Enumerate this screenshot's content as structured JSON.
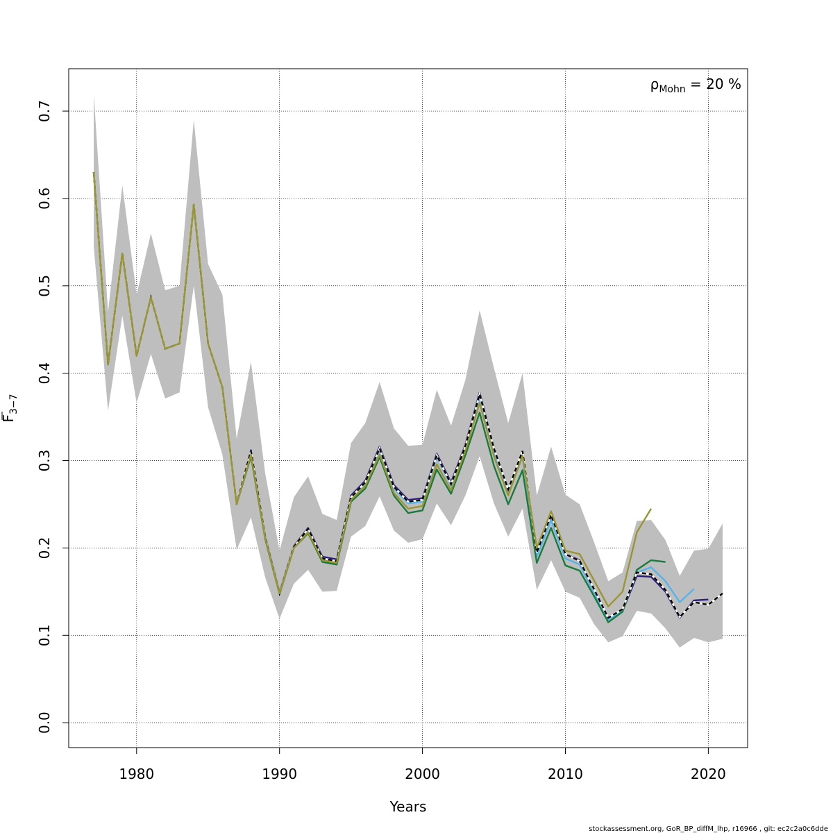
{
  "chart_data": {
    "type": "line",
    "xlabel": "Years",
    "ylabel": {
      "base": "F",
      "sub": "3−7"
    },
    "xlim": [
      1975.25,
      2022.75
    ],
    "ylim": [
      -0.0285,
      0.7485
    ],
    "xticks": [
      1980,
      1990,
      2000,
      2010,
      2020
    ],
    "yticks": [
      0.0,
      0.1,
      0.2,
      0.3,
      0.4,
      0.5,
      0.6,
      0.7
    ],
    "ytick_labels": [
      "0.0",
      "0.1",
      "0.2",
      "0.3",
      "0.4",
      "0.5",
      "0.6",
      "0.7"
    ],
    "grid": true,
    "annotation": {
      "rho": "ρ",
      "sub": "Mohn",
      "text": " = 20 %"
    },
    "footer": "stockassessment.org, GoR_BP_diffM_lhp, r16966 , git: ec2c2a0c6dde",
    "confidence_band": {
      "x": [
        1977,
        1978,
        1979,
        1980,
        1981,
        1982,
        1983,
        1984,
        1985,
        1986,
        1987,
        1988,
        1989,
        1990,
        1991,
        1992,
        1993,
        1994,
        1995,
        1996,
        1997,
        1998,
        1999,
        2000,
        2001,
        2002,
        2003,
        2004,
        2005,
        2006,
        2007,
        2008,
        2009,
        2010,
        2011,
        2012,
        2013,
        2014,
        2015,
        2016,
        2017,
        2018,
        2019,
        2020,
        2021
      ],
      "upper": [
        0.72,
        0.47,
        0.615,
        0.49,
        0.56,
        0.495,
        0.5,
        0.69,
        0.525,
        0.49,
        0.325,
        0.413,
        0.285,
        0.197,
        0.258,
        0.282,
        0.239,
        0.232,
        0.32,
        0.343,
        0.39,
        0.337,
        0.317,
        0.318,
        0.381,
        0.34,
        0.392,
        0.472,
        0.406,
        0.343,
        0.4,
        0.26,
        0.316,
        0.261,
        0.25,
        0.207,
        0.162,
        0.172,
        0.231,
        0.232,
        0.209,
        0.168,
        0.197,
        0.199,
        0.228
      ],
      "lower": [
        0.545,
        0.357,
        0.466,
        0.366,
        0.422,
        0.371,
        0.378,
        0.5,
        0.361,
        0.307,
        0.198,
        0.235,
        0.166,
        0.119,
        0.159,
        0.175,
        0.15,
        0.151,
        0.213,
        0.225,
        0.259,
        0.22,
        0.206,
        0.21,
        0.251,
        0.226,
        0.26,
        0.305,
        0.251,
        0.213,
        0.245,
        0.152,
        0.186,
        0.15,
        0.143,
        0.113,
        0.092,
        0.099,
        0.128,
        0.125,
        0.108,
        0.086,
        0.097,
        0.092,
        0.096
      ]
    },
    "series": [
      {
        "color": "#000000",
        "dashed": true,
        "end": 2021,
        "values": [
          0.63,
          0.41,
          0.537,
          0.42,
          0.487,
          0.428,
          0.434,
          0.593,
          0.434,
          0.384,
          0.25,
          0.311,
          0.212,
          0.148,
          0.201,
          0.222,
          0.188,
          0.185,
          0.258,
          0.275,
          0.314,
          0.27,
          0.253,
          0.255,
          0.306,
          0.273,
          0.316,
          0.376,
          0.314,
          0.267,
          0.311,
          0.195,
          0.238,
          0.193,
          0.185,
          0.153,
          0.12,
          0.13,
          0.172,
          0.17,
          0.152,
          0.121,
          0.138,
          0.135,
          0.148
        ]
      },
      {
        "color": "#2c1c7a",
        "dashed": false,
        "end": 2020,
        "values": [
          0.63,
          0.41,
          0.537,
          0.42,
          0.487,
          0.428,
          0.434,
          0.593,
          0.434,
          0.384,
          0.25,
          0.312,
          0.213,
          0.149,
          0.202,
          0.223,
          0.19,
          0.187,
          0.26,
          0.277,
          0.316,
          0.272,
          0.255,
          0.257,
          0.308,
          0.275,
          0.318,
          0.378,
          0.314,
          0.266,
          0.308,
          0.192,
          0.236,
          0.193,
          0.186,
          0.152,
          0.12,
          0.128,
          0.168,
          0.167,
          0.15,
          0.12,
          0.14,
          0.141
        ]
      },
      {
        "color": "#56b4e9",
        "dashed": false,
        "end": 2019,
        "values": [
          0.63,
          0.41,
          0.537,
          0.42,
          0.487,
          0.428,
          0.434,
          0.593,
          0.434,
          0.384,
          0.25,
          0.31,
          0.212,
          0.148,
          0.201,
          0.221,
          0.188,
          0.185,
          0.258,
          0.274,
          0.312,
          0.268,
          0.251,
          0.253,
          0.304,
          0.271,
          0.313,
          0.372,
          0.309,
          0.262,
          0.304,
          0.19,
          0.232,
          0.188,
          0.181,
          0.149,
          0.118,
          0.128,
          0.172,
          0.178,
          0.162,
          0.138,
          0.153
        ]
      },
      {
        "color": "#1a7a3c",
        "dashed": false,
        "end": 2017,
        "values": [
          0.63,
          0.41,
          0.537,
          0.42,
          0.487,
          0.428,
          0.434,
          0.593,
          0.434,
          0.384,
          0.25,
          0.305,
          0.21,
          0.147,
          0.2,
          0.217,
          0.184,
          0.181,
          0.253,
          0.268,
          0.304,
          0.26,
          0.24,
          0.243,
          0.29,
          0.262,
          0.306,
          0.355,
          0.294,
          0.25,
          0.289,
          0.183,
          0.223,
          0.18,
          0.174,
          0.145,
          0.115,
          0.127,
          0.175,
          0.186,
          0.184
        ]
      },
      {
        "color": "#9a9530",
        "dashed": false,
        "end": 2016,
        "values": [
          0.63,
          0.41,
          0.537,
          0.42,
          0.487,
          0.428,
          0.434,
          0.593,
          0.434,
          0.384,
          0.25,
          0.307,
          0.211,
          0.148,
          0.2,
          0.218,
          0.186,
          0.183,
          0.255,
          0.271,
          0.307,
          0.263,
          0.245,
          0.248,
          0.296,
          0.266,
          0.311,
          0.366,
          0.305,
          0.26,
          0.306,
          0.2,
          0.242,
          0.197,
          0.193,
          0.163,
          0.133,
          0.15,
          0.218,
          0.245
        ]
      }
    ]
  }
}
